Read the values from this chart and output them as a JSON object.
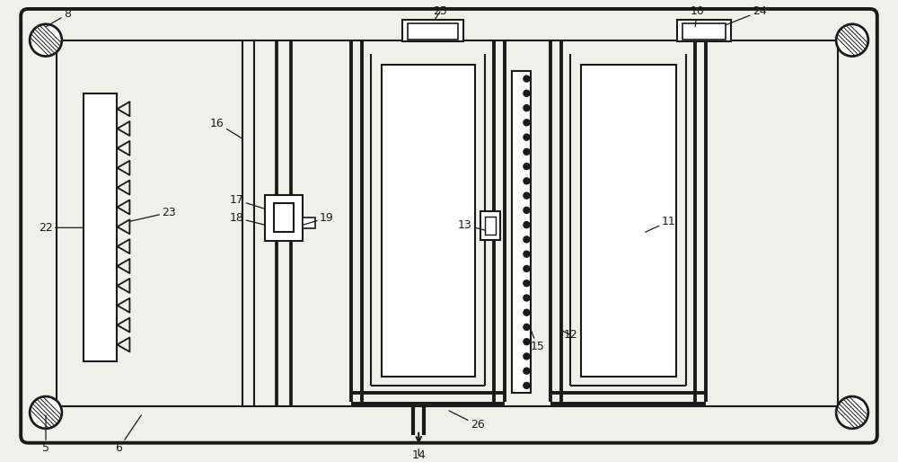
{
  "bg_color": "#f0f0eb",
  "line_color": "#1a1a1a",
  "lw": 1.5,
  "tlw": 2.8,
  "fig_w": 10.0,
  "fig_h": 5.14,
  "dpi": 100
}
